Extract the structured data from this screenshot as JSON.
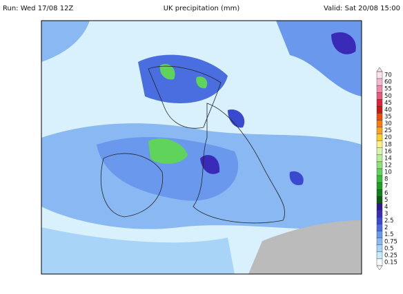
{
  "header": {
    "run": "Run: Wed 17/08 12Z",
    "title": "UK precipitation (mm)",
    "valid": "Valid: Sat 20/08 15:00"
  },
  "legend": {
    "levels": [
      70,
      60,
      55,
      50,
      45,
      40,
      35,
      30,
      25,
      20,
      18,
      16,
      14,
      12,
      10,
      8,
      7,
      6,
      5,
      4,
      3,
      2.5,
      2,
      1.5,
      0.75,
      0.5,
      0.25,
      0.15
    ],
    "colors": [
      "#fbe3ee",
      "#f6b8cf",
      "#f08aa8",
      "#e85a7c",
      "#e0203a",
      "#c81818",
      "#f04a10",
      "#f77a10",
      "#f9a61c",
      "#f9d22a",
      "#fbef8a",
      "#d7f5b0",
      "#b6ee98",
      "#8ee07a",
      "#5fd35a",
      "#37bd36",
      "#1f9e24",
      "#10801a",
      "#0a5a12",
      "#2a1a8a",
      "#3a2ab8",
      "#3a4ad0",
      "#4a6ee0",
      "#6a98ec",
      "#8ab8f2",
      "#a8d4f8",
      "#c8ecfb",
      "#f4fbff"
    ]
  }
}
